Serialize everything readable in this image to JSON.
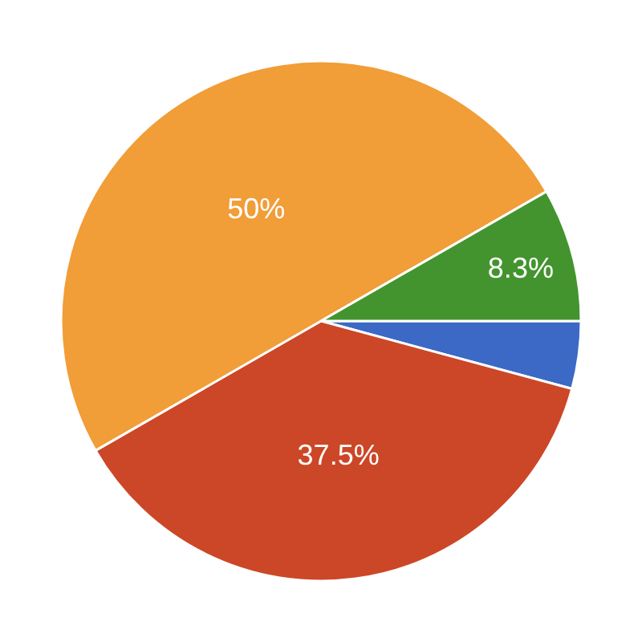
{
  "chart_data": {
    "type": "pie",
    "categories": [
      null,
      null,
      null,
      null
    ],
    "values": [
      4.2,
      37.5,
      50,
      8.3
    ],
    "colors": [
      "#3c69c6",
      "#cc4727",
      "#f19d38",
      "#43942f"
    ],
    "value_labels": [
      null,
      "37.5%",
      "50%",
      "8.3%"
    ]
  }
}
